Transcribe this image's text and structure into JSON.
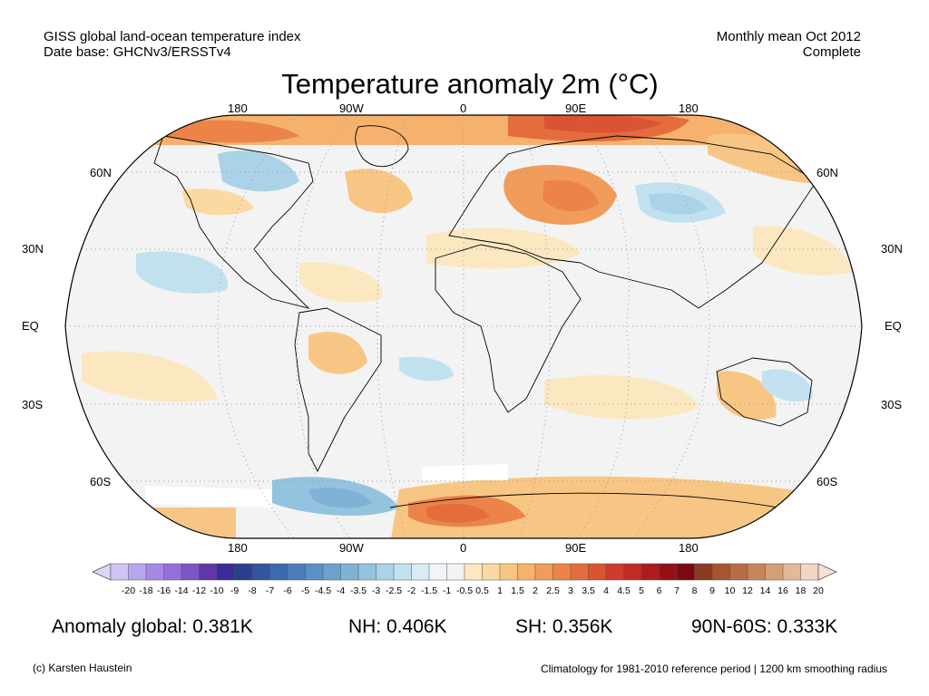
{
  "header": {
    "left_line1": "GISS global land-ocean temperature index",
    "left_line2": "Date base: GHCNv3/ERSSTv4",
    "right_line1": "Monthly mean Oct 2012",
    "right_line2": "Complete"
  },
  "title": "Temperature anomaly 2m (°C)",
  "lon_labels": [
    "180",
    "90W",
    "0",
    "90E",
    "180"
  ],
  "lat_labels": [
    "60N",
    "30N",
    "EQ",
    "30S",
    "60S"
  ],
  "colorbar": {
    "labels": [
      "-20",
      "-18",
      "-16",
      "-14",
      "-12",
      "-10",
      "-9",
      "-8",
      "-7",
      "-6",
      "-5",
      "-4.5",
      "-4",
      "-3.5",
      "-3",
      "-2.5",
      "-2",
      "-1.5",
      "-1",
      "-0.5",
      "0.5",
      "1",
      "1.5",
      "2",
      "2.5",
      "3",
      "3.5",
      "4",
      "4.5",
      "5",
      "6",
      "7",
      "8",
      "9",
      "10",
      "12",
      "14",
      "16",
      "18",
      "20"
    ],
    "colors": [
      "#cfc4f2",
      "#b7a6ee",
      "#a48ae6",
      "#9370dc",
      "#7b55c8",
      "#5f37a9",
      "#3a2b96",
      "#2b3f8e",
      "#31559e",
      "#3c6aae",
      "#4a7eba",
      "#5a90c4",
      "#6aa1cd",
      "#7fb3d6",
      "#93c3df",
      "#aad3e8",
      "#c1e1ef",
      "#d9ecf5",
      "#eff6fa",
      "#f3f3f3",
      "#fbe8c0",
      "#fbd9a2",
      "#f8c684",
      "#f6b26d",
      "#f19c5a",
      "#ec844a",
      "#e46c3d",
      "#da5333",
      "#cf3b2b",
      "#c12a25",
      "#ad1b1c",
      "#951016",
      "#7a0a0f",
      "#8a3a20",
      "#a5552f",
      "#b76d44",
      "#c6855a",
      "#d59f76",
      "#e4b89a",
      "#f2d4c2"
    ],
    "end_left_color": "#ddd4f7",
    "end_right_color": "#f7dfd1"
  },
  "stats": {
    "global": "Anomaly global: 0.381K",
    "nh": "NH: 0.406K",
    "sh": "SH: 0.356K",
    "polar": "90N-60S: 0.333K"
  },
  "footer": {
    "left": "(c) Karsten Haustein",
    "right": "Climatology for 1981-2010 reference period | 1200 km smoothing radius"
  }
}
